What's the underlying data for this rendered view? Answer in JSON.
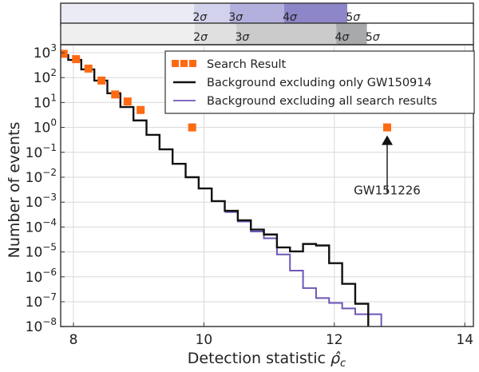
{
  "chart_data": {
    "type": "line",
    "title": "",
    "xlabel": "Detection statistic ρ̂c",
    "xlabel_main": "Detection statistic ",
    "xlabel_symbol": "ρ̂",
    "xlabel_sub": "c",
    "ylabel": "Number of events",
    "xlim": [
      7.8,
      14.15
    ],
    "ylim_log10": [
      -8,
      3.3
    ],
    "yscale": "log",
    "grid": true,
    "xticks": [
      8,
      10,
      12,
      14
    ],
    "xtick_labels": [
      "8",
      "10",
      "12",
      "14"
    ],
    "yticks_log10": [
      3,
      2,
      1,
      0,
      -1,
      -2,
      -3,
      -4,
      -5,
      -6,
      -7,
      -8
    ],
    "ytick_labels": [
      {
        "base": "10",
        "exp": "3"
      },
      {
        "base": "10",
        "exp": "2"
      },
      {
        "base": "10",
        "exp": "1"
      },
      {
        "base": "10",
        "exp": "0"
      },
      {
        "base": "10",
        "exp": "−1"
      },
      {
        "base": "10",
        "exp": "−2"
      },
      {
        "base": "10",
        "exp": "−3"
      },
      {
        "base": "10",
        "exp": "−4"
      },
      {
        "base": "10",
        "exp": "−5"
      },
      {
        "base": "10",
        "exp": "−6"
      },
      {
        "base": "10",
        "exp": "−7"
      },
      {
        "base": "10",
        "exp": "−8"
      }
    ],
    "legend": {
      "placement": "top-right",
      "entries": [
        {
          "label": "Search Result",
          "marker": "square",
          "color": "#ff6a13"
        },
        {
          "label": "Background excluding only GW150914",
          "marker": "line",
          "color": "#111111"
        },
        {
          "label": "Background excluding all search results",
          "marker": "line",
          "color": "#6e56b8"
        }
      ]
    },
    "series": [
      {
        "name": "Search Result",
        "kind": "scatter",
        "color": "#ff6a13",
        "points": [
          {
            "x": 7.85,
            "y": 900
          },
          {
            "x": 8.04,
            "y": 550
          },
          {
            "x": 8.23,
            "y": 230
          },
          {
            "x": 8.43,
            "y": 76
          },
          {
            "x": 8.64,
            "y": 21
          },
          {
            "x": 8.83,
            "y": 11
          },
          {
            "x": 9.03,
            "y": 5
          },
          {
            "x": 9.82,
            "y": 1
          },
          {
            "x": 12.81,
            "y": 1
          }
        ]
      },
      {
        "name": "Background excluding only GW150914",
        "kind": "step",
        "color": "#111111",
        "edges": [
          7.8,
          7.92,
          8.12,
          8.32,
          8.52,
          8.72,
          8.92,
          9.12,
          9.32,
          9.52,
          9.72,
          9.92,
          10.12,
          10.32,
          10.52,
          10.72,
          10.92,
          11.12,
          11.32,
          11.52,
          11.72,
          11.92,
          12.12,
          12.32,
          12.52,
          12.72
        ],
        "log10_values": [
          2.9,
          2.71,
          2.33,
          1.88,
          1.37,
          0.82,
          0.28,
          -0.3,
          -0.88,
          -1.46,
          -2.0,
          -2.45,
          -2.96,
          -3.35,
          -3.73,
          -4.1,
          -4.3,
          -4.82,
          -4.98,
          -4.68,
          -4.74,
          -5.45,
          -6.28,
          -7.08,
          -8.3
        ]
      },
      {
        "name": "Background excluding all search results",
        "kind": "step",
        "color": "#6e56b8",
        "edges": [
          10.32,
          10.52,
          10.72,
          10.92,
          11.12,
          11.32,
          11.52,
          11.72,
          11.92,
          12.12,
          12.32,
          12.72
        ],
        "log10_values": [
          -3.4,
          -3.78,
          -4.18,
          -4.45,
          -5.1,
          -5.75,
          -6.45,
          -6.85,
          -7.05,
          -7.27,
          -7.5
        ]
      }
    ],
    "annotation": {
      "text": "GW151226",
      "arrow_to": {
        "x": 12.81,
        "y": 1
      }
    },
    "significance_bands": [
      {
        "name": "purple",
        "colors": [
          "#ebebf5",
          "#d2d2ec",
          "#b3b0de",
          "#8d86c8",
          "#ffffff"
        ],
        "boundaries_x": [
          9.85,
          10.4,
          11.23,
          12.2
        ],
        "labels": [
          "2σ",
          "3σ",
          "4σ",
          "5σ"
        ]
      },
      {
        "name": "grey",
        "colors": [
          "#efefef",
          "#e0e0e0",
          "#cbcbcc",
          "#a8a9ab",
          "#ffffff"
        ],
        "boundaries_x": [
          9.86,
          10.5,
          12.03,
          12.5
        ],
        "labels": [
          "2σ",
          "3σ",
          "4σ",
          "5σ"
        ]
      }
    ]
  }
}
